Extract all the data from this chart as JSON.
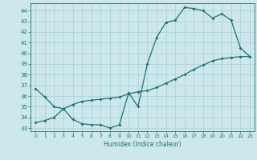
{
  "title": "",
  "xlabel": "Humidex (Indice chaleur)",
  "xlim": [
    -0.5,
    23.5
  ],
  "ylim": [
    32.7,
    44.7
  ],
  "yticks": [
    33,
    34,
    35,
    36,
    37,
    38,
    39,
    40,
    41,
    42,
    43,
    44
  ],
  "xticks": [
    0,
    1,
    2,
    3,
    4,
    5,
    6,
    7,
    8,
    9,
    10,
    11,
    12,
    13,
    14,
    15,
    16,
    17,
    18,
    19,
    20,
    21,
    22,
    23
  ],
  "bg_color": "#cce8ec",
  "line_color": "#1e7070",
  "grid_color": "#aacdd4",
  "line1_x": [
    0,
    1,
    2,
    3,
    4,
    5,
    6,
    7,
    8,
    9,
    10,
    11,
    12,
    13,
    14,
    15,
    16,
    17,
    18,
    19,
    20,
    21,
    22,
    23
  ],
  "line1_y": [
    36.7,
    35.9,
    35.0,
    34.8,
    33.8,
    33.4,
    33.3,
    33.3,
    33.0,
    33.3,
    36.3,
    35.0,
    39.0,
    41.5,
    42.9,
    43.1,
    44.3,
    44.2,
    44.0,
    43.3,
    43.7,
    43.1,
    40.5,
    39.7
  ],
  "line2_x": [
    0,
    1,
    2,
    3,
    4,
    5,
    6,
    7,
    8,
    9,
    10,
    11,
    12,
    13,
    14,
    15,
    16,
    17,
    18,
    19,
    20,
    21,
    22,
    23
  ],
  "line2_y": [
    33.5,
    33.7,
    34.0,
    34.8,
    35.2,
    35.5,
    35.6,
    35.7,
    35.8,
    35.9,
    36.2,
    36.4,
    36.5,
    36.8,
    37.2,
    37.6,
    38.0,
    38.5,
    38.9,
    39.3,
    39.5,
    39.6,
    39.7,
    39.7
  ]
}
